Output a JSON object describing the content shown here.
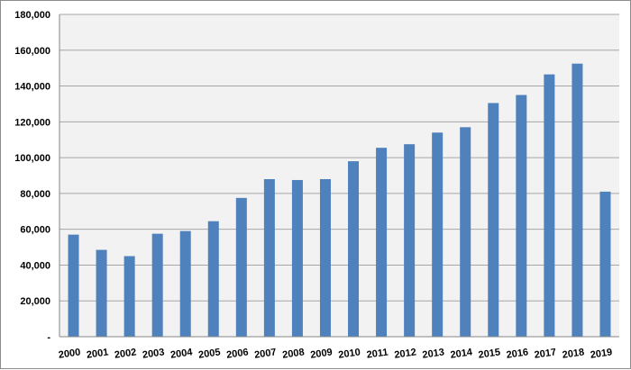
{
  "chart_data": {
    "type": "bar",
    "title": "",
    "xlabel": "",
    "ylabel": "",
    "categories": [
      "2000",
      "2001",
      "2002",
      "2003",
      "2004",
      "2005",
      "2006",
      "2007",
      "2008",
      "2009",
      "2010",
      "2011",
      "2012",
      "2013",
      "2014",
      "2015",
      "2016",
      "2017",
      "2018",
      "2019"
    ],
    "values": [
      57000,
      48500,
      45000,
      57500,
      59000,
      64500,
      77500,
      88000,
      87500,
      88000,
      98000,
      105500,
      107500,
      114000,
      117000,
      130500,
      135000,
      146500,
      152500,
      81000
    ],
    "ylim": [
      0,
      180000
    ],
    "yticks": [
      0,
      20000,
      40000,
      60000,
      80000,
      100000,
      120000,
      140000,
      160000,
      180000
    ],
    "ytick_labels": [
      "-",
      "20,000",
      "40,000",
      "60,000",
      "80,000",
      "100,000",
      "120,000",
      "140,000",
      "160,000",
      "180,000"
    ],
    "grid": true,
    "legend": "none",
    "colors": {
      "bar": "#4f81bd",
      "plot_bg": "#f2f2f2",
      "grid": "#a6a6a6"
    }
  }
}
